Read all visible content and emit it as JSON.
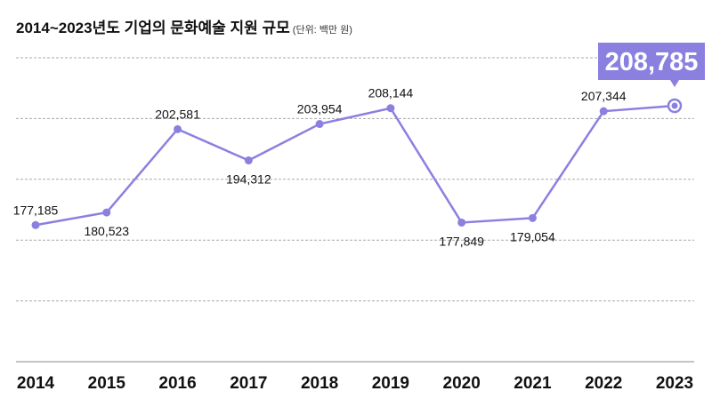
{
  "chart_data": {
    "type": "line",
    "title": "2014~2023년도 기업의 문화예술 지원 규모",
    "unit_note": "(단위: 백만 원)",
    "categories": [
      "2014",
      "2015",
      "2016",
      "2017",
      "2018",
      "2019",
      "2020",
      "2021",
      "2022",
      "2023"
    ],
    "values": [
      177185,
      180523,
      202581,
      194312,
      203954,
      208144,
      177849,
      179054,
      207344,
      208785
    ],
    "data_labels": [
      "177,185",
      "180,523",
      "202,581",
      "194,312",
      "203,954",
      "208,144",
      "177,849",
      "179,054",
      "207,344",
      "208,785"
    ],
    "highlight": {
      "category": "2023",
      "label": "208,785"
    },
    "ylim": [
      141000,
      221500
    ],
    "grid": true,
    "color": "#8b80e0"
  }
}
